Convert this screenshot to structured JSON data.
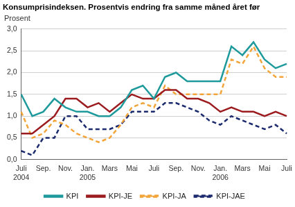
{
  "chart_data": {
    "type": "line",
    "title": "Konsumprisindeksen. Prosentvis endring fra samme måned året før",
    "ylabel": "Prosent",
    "categories": [
      "Juli 2004",
      null,
      "Sep.",
      null,
      "Nov.",
      null,
      "Jan. 2005",
      null,
      "Mars",
      null,
      "Mai",
      null,
      "Juli",
      null,
      "Sep.",
      null,
      "Nov.",
      null,
      "Jan. 2006",
      null,
      "Mars",
      null,
      "Mai",
      null,
      "Juli"
    ],
    "series": [
      {
        "name": "KPI",
        "color": "#1f9a9c",
        "line_style": "solid",
        "values": [
          1.5,
          1.0,
          1.1,
          1.4,
          1.2,
          1.1,
          1.1,
          1.0,
          1.0,
          1.2,
          1.6,
          1.7,
          1.4,
          1.9,
          2.0,
          1.8,
          1.8,
          1.8,
          1.8,
          2.6,
          2.4,
          2.7,
          2.3,
          2.1,
          2.2
        ]
      },
      {
        "name": "KPI-JE",
        "color": "#9b1b1f",
        "line_style": "solid",
        "values": [
          0.6,
          0.6,
          0.8,
          1.0,
          1.4,
          1.4,
          1.2,
          1.3,
          1.1,
          1.3,
          1.5,
          1.4,
          1.4,
          1.6,
          1.6,
          1.4,
          1.4,
          1.3,
          1.1,
          1.2,
          1.1,
          1.1,
          1.0,
          1.1,
          1.0
        ]
      },
      {
        "name": "KPI-JA",
        "color": "#f4a53a",
        "line_style": "dashed",
        "values": [
          1.1,
          0.5,
          0.6,
          0.9,
          0.8,
          0.6,
          0.5,
          0.4,
          0.5,
          0.8,
          1.2,
          1.3,
          1.2,
          1.7,
          1.5,
          1.5,
          1.5,
          1.5,
          1.5,
          2.3,
          2.2,
          2.6,
          2.1,
          1.9,
          1.9
        ]
      },
      {
        "name": "KPI-JAE",
        "color": "#1c2a6e",
        "line_style": "dashed",
        "values": [
          0.2,
          0.1,
          0.5,
          0.5,
          1.0,
          1.0,
          0.7,
          0.7,
          0.7,
          0.8,
          1.1,
          1.1,
          1.1,
          1.3,
          1.3,
          1.2,
          1.1,
          0.9,
          0.8,
          1.0,
          0.9,
          0.8,
          0.7,
          0.8,
          0.6
        ]
      }
    ],
    "ylim": [
      0,
      3
    ],
    "yticks": [
      {
        "value": 0,
        "label": "0,0"
      },
      {
        "value": 0.5,
        "label": "0,5"
      },
      {
        "value": 1,
        "label": "1,0"
      },
      {
        "value": 1.5,
        "label": "1,5"
      },
      {
        "value": 2,
        "label": "2,0"
      },
      {
        "value": 2.5,
        "label": "2,5"
      },
      {
        "value": 3,
        "label": "3,0"
      }
    ],
    "grid": true,
    "legend": "bottom"
  }
}
